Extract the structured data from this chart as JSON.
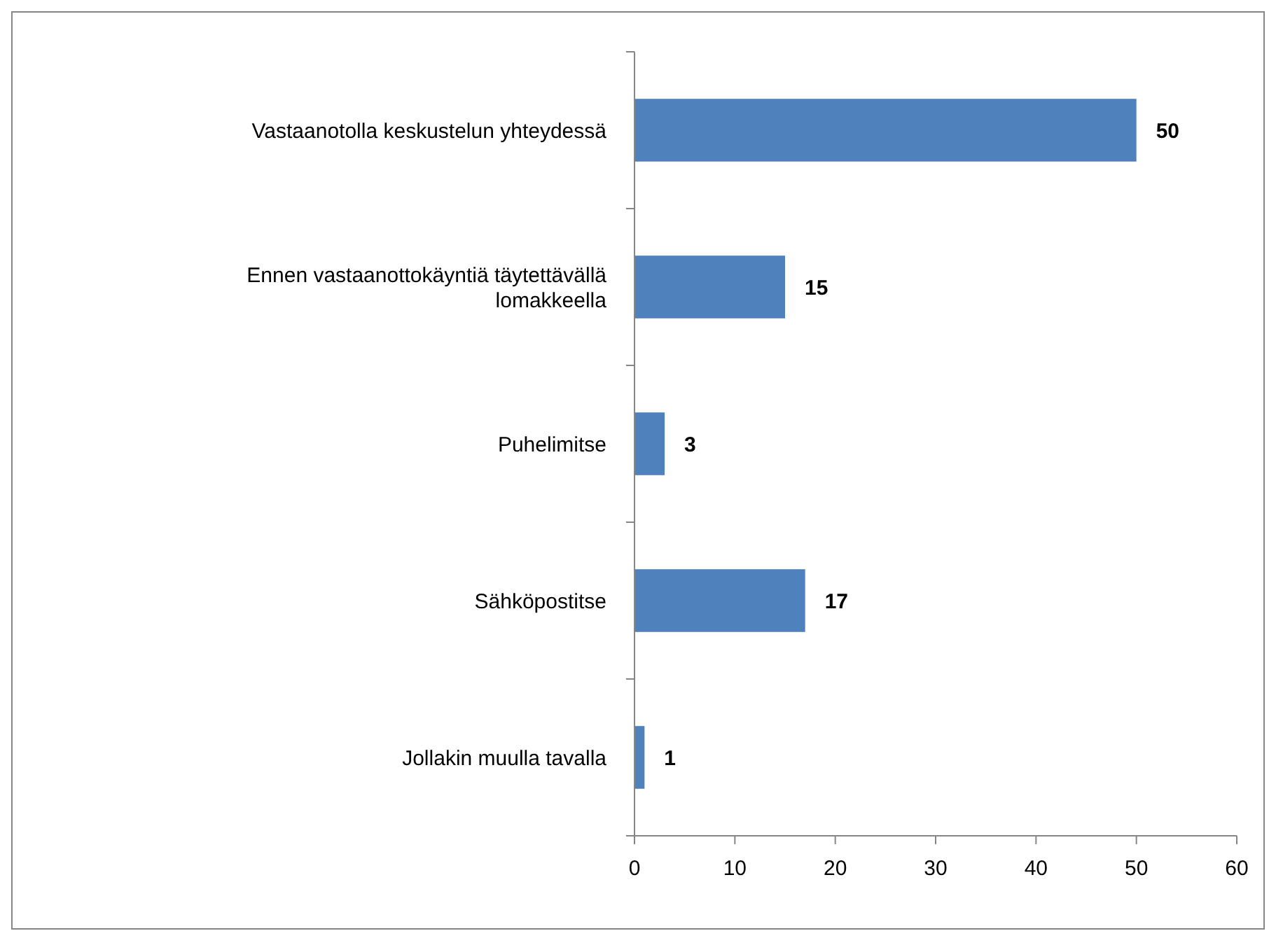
{
  "chart_data": {
    "type": "bar",
    "orientation": "horizontal",
    "categories": [
      "Vastaanotolla keskustelun yhteydessä",
      "Ennen vastaanottokäyntiä täytettävällä lomakkeella",
      "Puhelimitse",
      "Sähköpostitse",
      "Jollakin muulla tavalla"
    ],
    "values": [
      50,
      15,
      3,
      17,
      1
    ],
    "color": "#4f81bd",
    "xlim": [
      0,
      60
    ],
    "xticks": [
      0,
      10,
      20,
      30,
      40,
      50,
      60
    ],
    "data_labels": true
  }
}
